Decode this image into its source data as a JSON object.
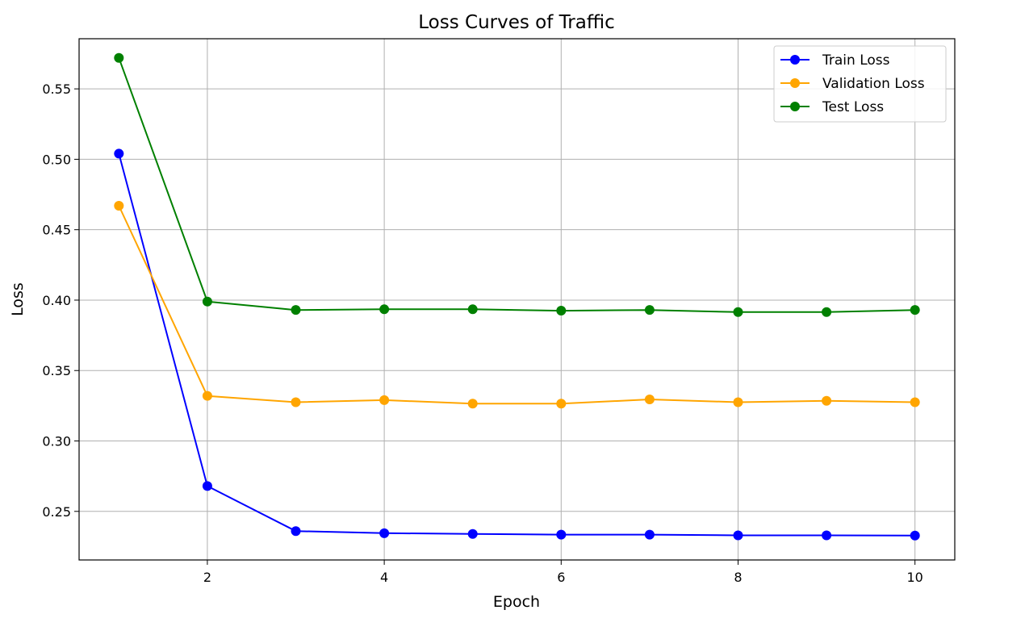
{
  "chart_data": {
    "type": "line",
    "title": "Loss Curves of Traffic",
    "xlabel": "Epoch",
    "ylabel": "Loss",
    "x": [
      1,
      2,
      3,
      4,
      5,
      6,
      7,
      8,
      9,
      10
    ],
    "xlim": [
      0.55,
      10.45
    ],
    "ylim": [
      0.2155,
      0.5856
    ],
    "xticks": [
      2,
      4,
      6,
      8,
      10
    ],
    "xtick_labels": [
      "2",
      "4",
      "6",
      "8",
      "10"
    ],
    "yticks": [
      0.25,
      0.3,
      0.35,
      0.4,
      0.45,
      0.5,
      0.55
    ],
    "ytick_labels": [
      "0.25",
      "0.30",
      "0.35",
      "0.40",
      "0.45",
      "0.50",
      "0.55"
    ],
    "grid": true,
    "legend_position": "top-right",
    "marker": "circle",
    "series": [
      {
        "name": "Train Loss",
        "color": "#0000ff",
        "values": [
          0.504,
          0.268,
          0.236,
          0.2345,
          0.234,
          0.2335,
          0.2335,
          0.233,
          0.233,
          0.2328
        ]
      },
      {
        "name": "Validation Loss",
        "color": "#ffa500",
        "values": [
          0.467,
          0.332,
          0.3275,
          0.329,
          0.3265,
          0.3265,
          0.3295,
          0.3275,
          0.3285,
          0.3275
        ]
      },
      {
        "name": "Test Loss",
        "color": "#008000",
        "values": [
          0.572,
          0.399,
          0.393,
          0.3935,
          0.3935,
          0.3925,
          0.393,
          0.3915,
          0.3915,
          0.393
        ]
      }
    ]
  }
}
